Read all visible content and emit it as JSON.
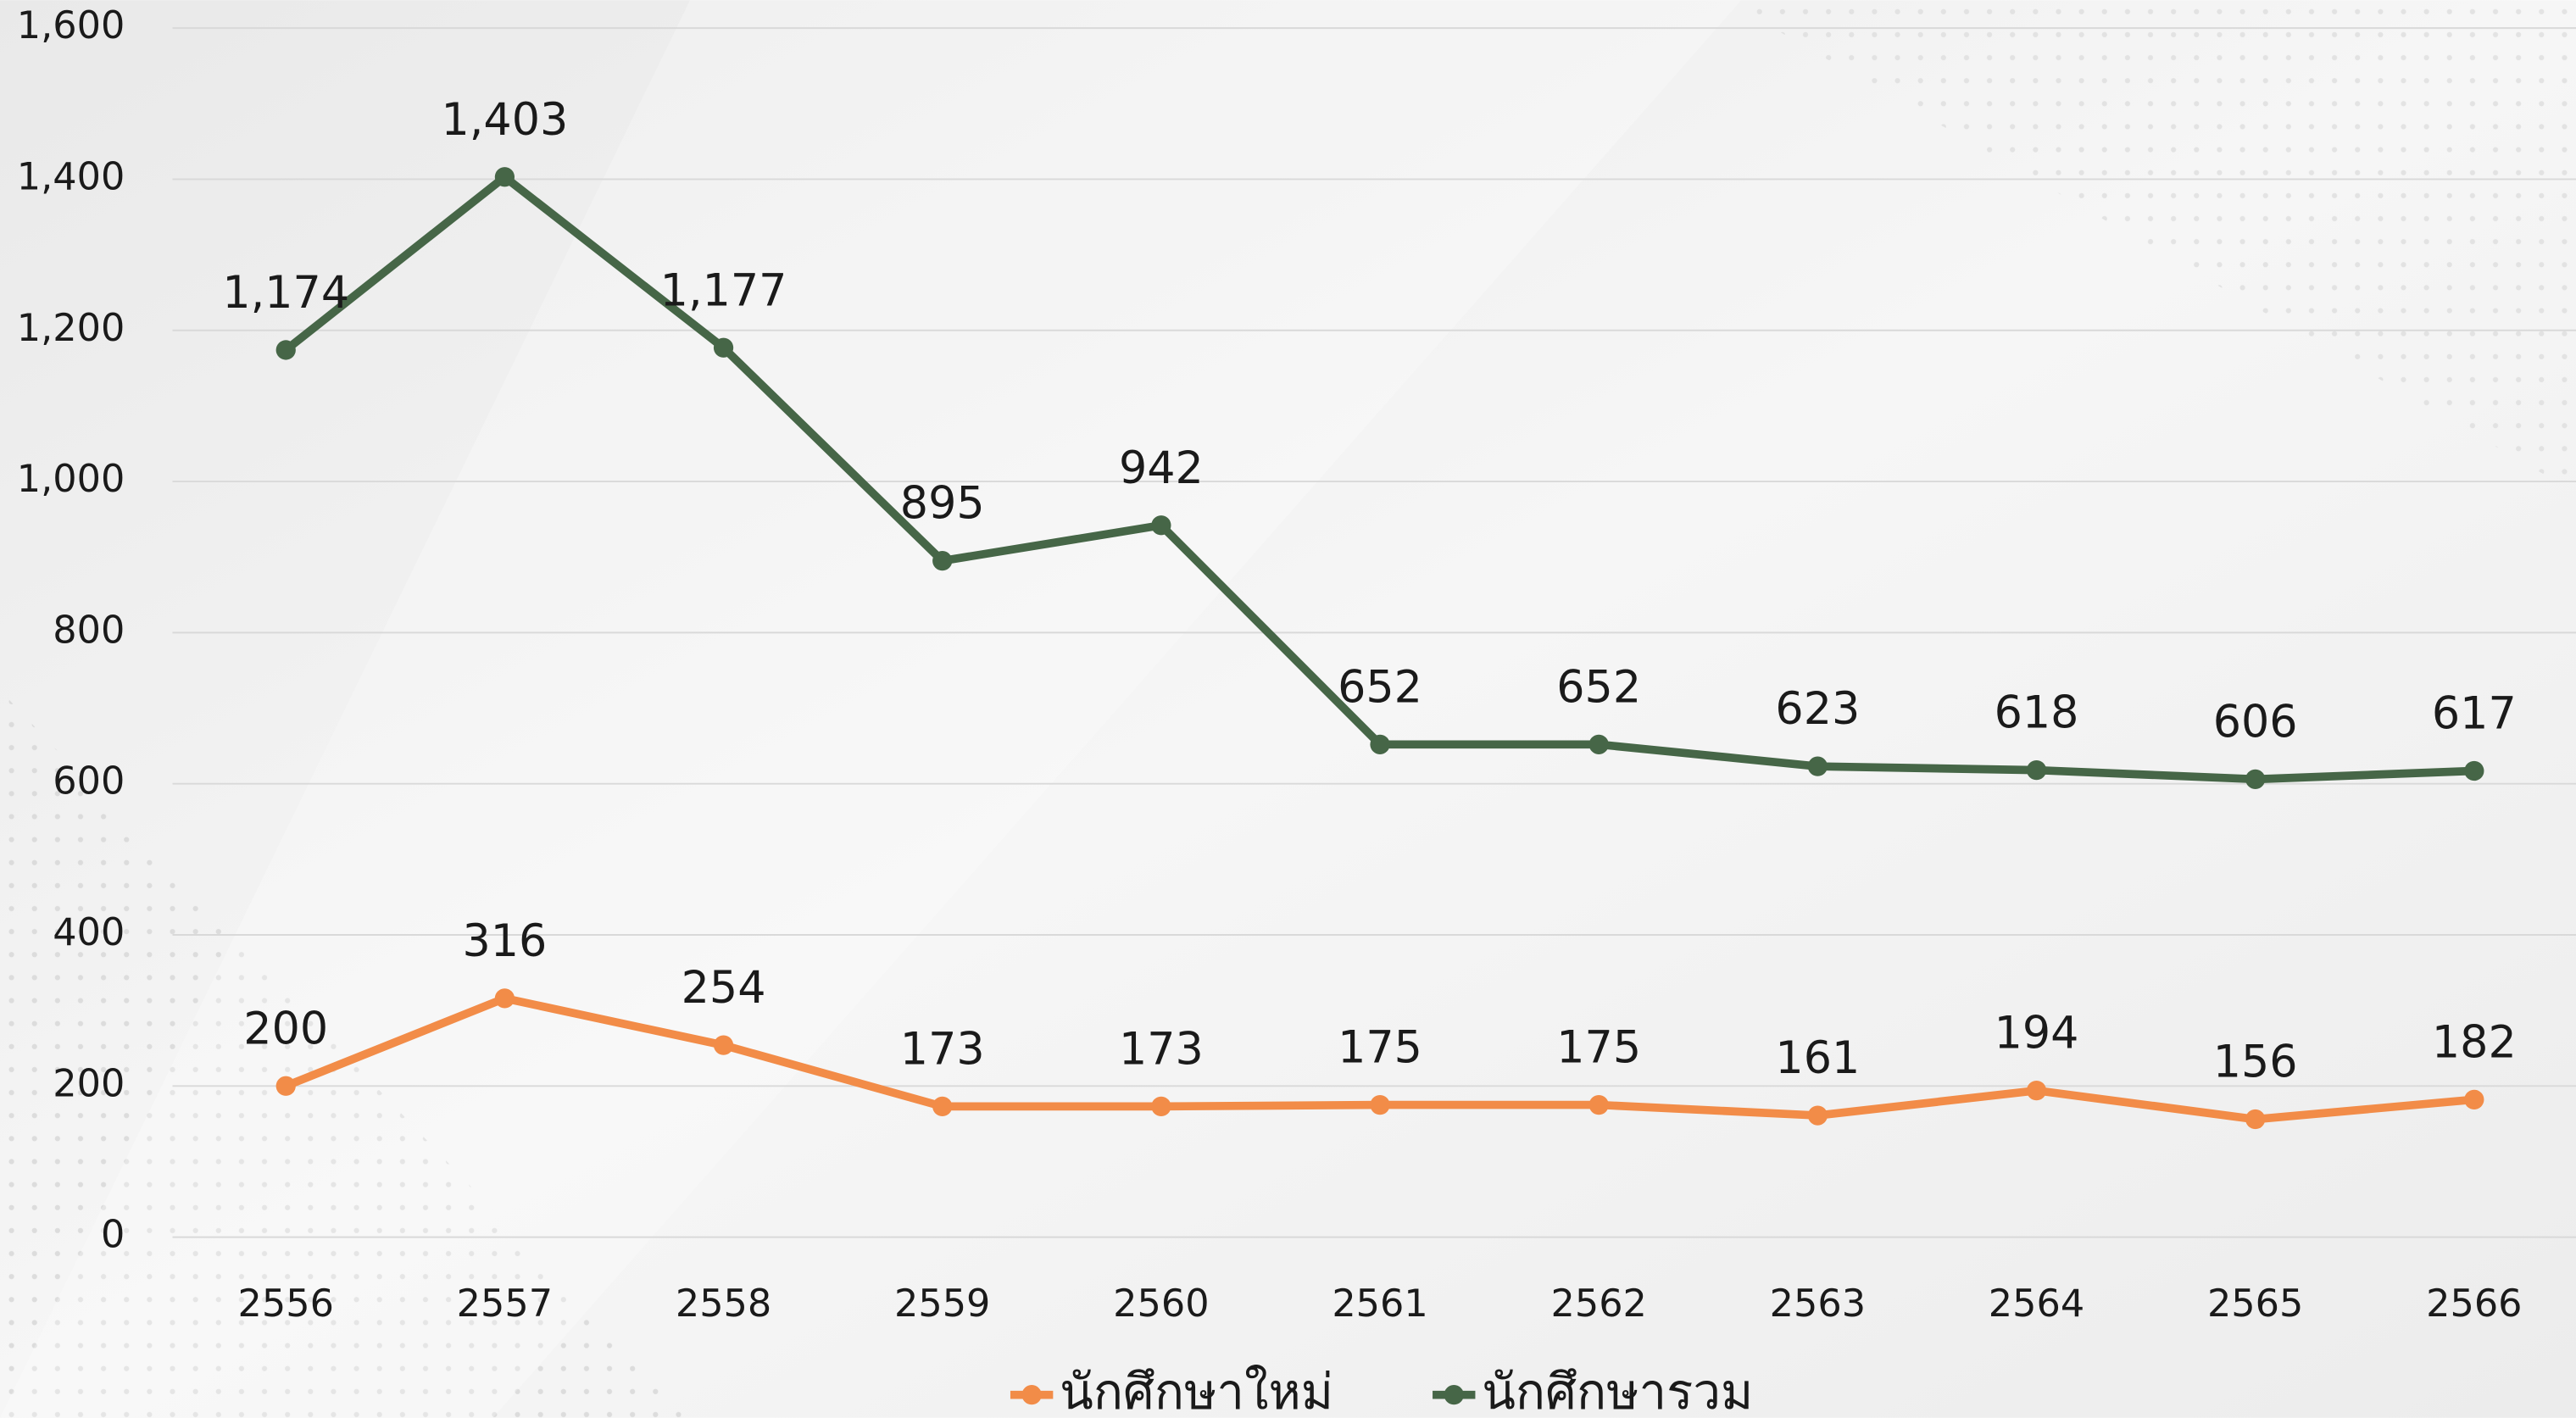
{
  "chart_data": {
    "type": "line",
    "categories": [
      "2556",
      "2557",
      "2558",
      "2559",
      "2560",
      "2561",
      "2562",
      "2563",
      "2564",
      "2565",
      "2566"
    ],
    "series": [
      {
        "name": "นักศึกษาใหม่",
        "color": "#f28c48",
        "values": [
          200,
          316,
          254,
          173,
          173,
          175,
          175,
          161,
          194,
          156,
          182
        ]
      },
      {
        "name": "นักศึกษารวม",
        "color": "#466647",
        "values": [
          1174,
          1403,
          1177,
          895,
          942,
          652,
          652,
          623,
          618,
          606,
          617
        ],
        "value_labels": [
          "1,174",
          "1,403",
          "1,177",
          "895",
          "942",
          "652",
          "652",
          "623",
          "618",
          "606",
          "617"
        ]
      }
    ],
    "ylim": [
      0,
      1600
    ],
    "yticks": [
      0,
      200,
      400,
      600,
      800,
      {
        "value": 1000,
        "label": "1,000"
      },
      {
        "value": 1200,
        "label": "1,200"
      },
      {
        "value": 1400,
        "label": "1,400"
      },
      {
        "value": 1600,
        "label": "1,600"
      }
    ],
    "grid": true
  }
}
